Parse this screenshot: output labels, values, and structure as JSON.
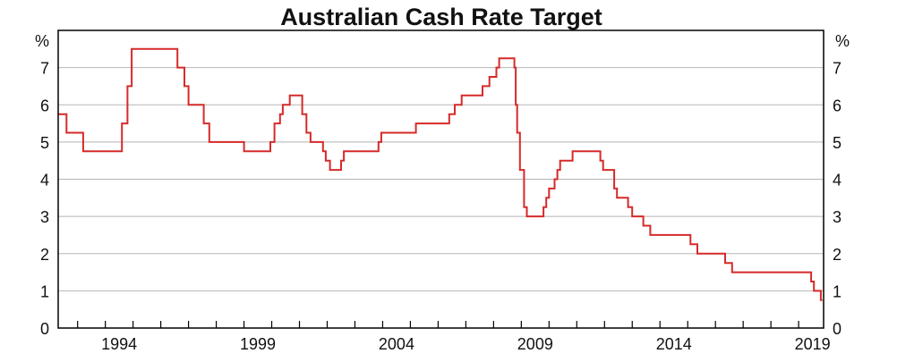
{
  "chart_data": {
    "type": "line",
    "title": "Australian Cash Rate Target",
    "y_unit_left": "%",
    "y_unit_right": "%",
    "ylim": [
      0,
      8
    ],
    "y_ticks": [
      0,
      1,
      2,
      3,
      4,
      5,
      6,
      7
    ],
    "xlim": [
      1992.3,
      2019.9
    ],
    "x_ticks": [
      1994,
      1999,
      2004,
      2009,
      2014,
      2019
    ],
    "grid": true,
    "line_color": "#d62a2a",
    "series": [
      {
        "step": true,
        "points": [
          [
            1992.3,
            5.75
          ],
          [
            1992.6,
            5.25
          ],
          [
            1993.2,
            4.75
          ],
          [
            1994.6,
            5.5
          ],
          [
            1994.8,
            6.5
          ],
          [
            1994.95,
            7.5
          ],
          [
            1996.6,
            7.0
          ],
          [
            1996.85,
            6.5
          ],
          [
            1997.0,
            6.0
          ],
          [
            1997.55,
            5.5
          ],
          [
            1997.75,
            5.0
          ],
          [
            1999.0,
            4.75
          ],
          [
            1999.95,
            5.0
          ],
          [
            2000.1,
            5.5
          ],
          [
            2000.3,
            5.75
          ],
          [
            2000.4,
            6.0
          ],
          [
            2000.65,
            6.25
          ],
          [
            2001.1,
            5.75
          ],
          [
            2001.25,
            5.25
          ],
          [
            2001.4,
            5.0
          ],
          [
            2001.85,
            4.75
          ],
          [
            2001.95,
            4.5
          ],
          [
            2002.1,
            4.25
          ],
          [
            2002.5,
            4.5
          ],
          [
            2002.6,
            4.75
          ],
          [
            2003.85,
            5.0
          ],
          [
            2003.95,
            5.25
          ],
          [
            2005.2,
            5.5
          ],
          [
            2006.4,
            5.75
          ],
          [
            2006.6,
            6.0
          ],
          [
            2006.85,
            6.25
          ],
          [
            2007.6,
            6.5
          ],
          [
            2007.85,
            6.75
          ],
          [
            2008.1,
            7.0
          ],
          [
            2008.2,
            7.25
          ],
          [
            2008.75,
            7.0
          ],
          [
            2008.8,
            6.0
          ],
          [
            2008.85,
            5.25
          ],
          [
            2008.95,
            4.25
          ],
          [
            2009.1,
            3.25
          ],
          [
            2009.2,
            3.0
          ],
          [
            2009.8,
            3.25
          ],
          [
            2009.9,
            3.5
          ],
          [
            2010.0,
            3.75
          ],
          [
            2010.2,
            4.0
          ],
          [
            2010.3,
            4.25
          ],
          [
            2010.4,
            4.5
          ],
          [
            2010.85,
            4.75
          ],
          [
            2011.85,
            4.5
          ],
          [
            2011.95,
            4.25
          ],
          [
            2012.35,
            3.75
          ],
          [
            2012.45,
            3.5
          ],
          [
            2012.85,
            3.25
          ],
          [
            2013.0,
            3.0
          ],
          [
            2013.4,
            2.75
          ],
          [
            2013.65,
            2.5
          ],
          [
            2015.1,
            2.25
          ],
          [
            2015.35,
            2.0
          ],
          [
            2016.35,
            1.75
          ],
          [
            2016.6,
            1.5
          ],
          [
            2019.45,
            1.25
          ],
          [
            2019.55,
            1.0
          ],
          [
            2019.8,
            0.75
          ],
          [
            2019.85,
            0.75
          ]
        ]
      }
    ]
  }
}
